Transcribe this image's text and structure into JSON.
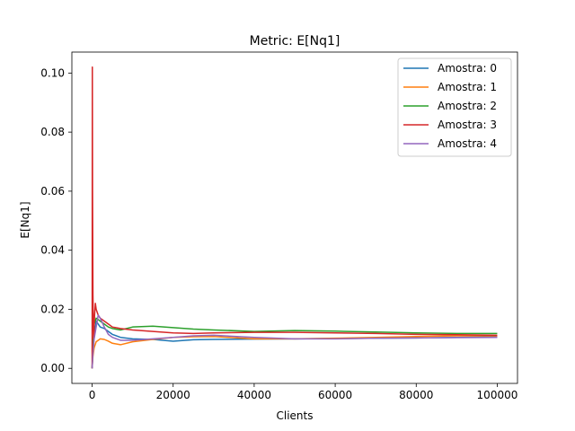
{
  "chart_data": {
    "type": "line",
    "title": "Metric: E[Nq1]",
    "xlabel": "Clients",
    "ylabel": "E[Nq1]",
    "xlim": [
      -5000,
      105000
    ],
    "ylim": [
      -0.0051,
      0.1071
    ],
    "xticks": [
      0,
      20000,
      40000,
      60000,
      80000,
      100000
    ],
    "yticks": [
      0.0,
      0.02,
      0.04,
      0.06,
      0.08,
      0.1
    ],
    "xtick_labels": [
      "0",
      "20000",
      "40000",
      "60000",
      "80000",
      "100000"
    ],
    "ytick_labels": [
      "0.00",
      "0.02",
      "0.04",
      "0.06",
      "0.08",
      "0.10"
    ],
    "grid": false,
    "legend_position": "top-right",
    "series": [
      {
        "name": "Amostra: 0",
        "color": "#1f77b4",
        "x": [
          0,
          200,
          500,
          1000,
          1500,
          2000,
          3000,
          4000,
          5000,
          7000,
          10000,
          15000,
          20000,
          25000,
          30000,
          40000,
          50000,
          60000,
          70000,
          80000,
          90000,
          100000
        ],
        "y": [
          0.0,
          0.006,
          0.011,
          0.016,
          0.015,
          0.014,
          0.0135,
          0.0125,
          0.0115,
          0.0105,
          0.01,
          0.0098,
          0.0092,
          0.0097,
          0.0098,
          0.0099,
          0.01,
          0.0101,
          0.0102,
          0.0103,
          0.0105,
          0.0107
        ]
      },
      {
        "name": "Amostra: 1",
        "color": "#ff7f0e",
        "x": [
          0,
          200,
          500,
          1000,
          1500,
          2000,
          3000,
          4000,
          5000,
          7000,
          10000,
          15000,
          20000,
          25000,
          30000,
          40000,
          50000,
          60000,
          70000,
          80000,
          90000,
          100000
        ],
        "y": [
          0.0,
          0.004,
          0.007,
          0.009,
          0.0095,
          0.01,
          0.0098,
          0.0092,
          0.0085,
          0.008,
          0.009,
          0.0098,
          0.0105,
          0.0107,
          0.0108,
          0.01,
          0.01,
          0.0102,
          0.0105,
          0.0108,
          0.011,
          0.011
        ]
      },
      {
        "name": "Amostra: 2",
        "color": "#2ca02c",
        "x": [
          0,
          200,
          500,
          1000,
          1500,
          2000,
          3000,
          4000,
          5000,
          7000,
          10000,
          15000,
          20000,
          25000,
          30000,
          40000,
          50000,
          60000,
          70000,
          80000,
          90000,
          100000
        ],
        "y": [
          0.0,
          0.008,
          0.015,
          0.017,
          0.0165,
          0.016,
          0.015,
          0.014,
          0.0135,
          0.013,
          0.014,
          0.0143,
          0.0138,
          0.0133,
          0.013,
          0.0125,
          0.0128,
          0.0126,
          0.0123,
          0.012,
          0.0118,
          0.0118
        ]
      },
      {
        "name": "Amostra: 3",
        "color": "#d62728",
        "x": [
          0,
          50,
          100,
          200,
          300,
          400,
          600,
          800,
          1000,
          1500,
          2000,
          3000,
          4000,
          5000,
          7000,
          10000,
          15000,
          20000,
          25000,
          30000,
          40000,
          50000,
          60000,
          70000,
          80000,
          90000,
          100000
        ],
        "y": [
          0.0,
          0.102,
          0.06,
          0.025,
          0.015,
          0.01,
          0.018,
          0.022,
          0.02,
          0.018,
          0.017,
          0.016,
          0.015,
          0.014,
          0.0135,
          0.013,
          0.0125,
          0.012,
          0.0118,
          0.012,
          0.0122,
          0.0122,
          0.012,
          0.0118,
          0.0115,
          0.0114,
          0.0112
        ]
      },
      {
        "name": "Amostra: 4",
        "color": "#9467bd",
        "x": [
          0,
          200,
          500,
          1000,
          1500,
          2000,
          3000,
          4000,
          5000,
          7000,
          10000,
          15000,
          20000,
          25000,
          30000,
          40000,
          50000,
          60000,
          70000,
          80000,
          90000,
          100000
        ],
        "y": [
          0.0,
          0.005,
          0.01,
          0.014,
          0.018,
          0.017,
          0.014,
          0.0115,
          0.0105,
          0.0095,
          0.0095,
          0.01,
          0.0105,
          0.011,
          0.0112,
          0.0105,
          0.01,
          0.01,
          0.0102,
          0.0103,
          0.0104,
          0.0105
        ]
      }
    ]
  }
}
